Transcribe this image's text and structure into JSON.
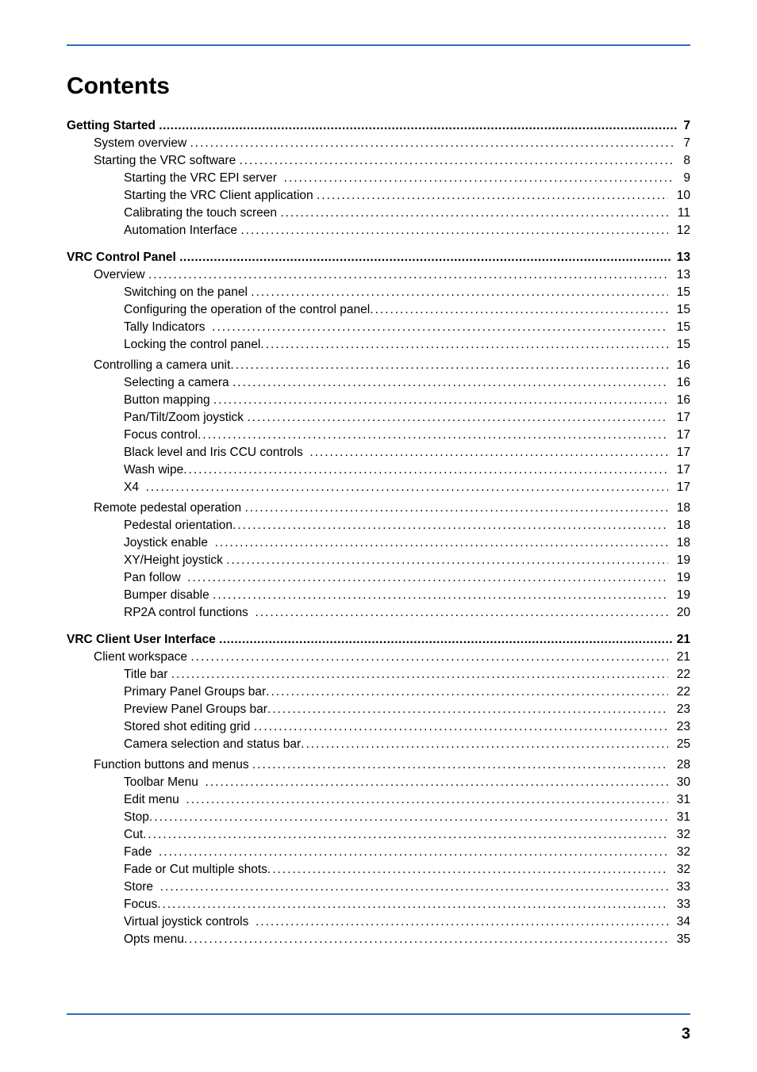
{
  "page": {
    "title": "Contents",
    "page_number": "3",
    "colors": {
      "rule": "#2a6fbf",
      "text": "#000000",
      "background": "#ffffff"
    },
    "toc": [
      {
        "level": 1,
        "label": "Getting Started ",
        "page": "7",
        "tight": true,
        "pad": ""
      },
      {
        "level": 2,
        "label": "System overview",
        "page": " 7",
        "pad": " "
      },
      {
        "level": 2,
        "label": "Starting the VRC software",
        "page": " 8",
        "pad": " "
      },
      {
        "level": 3,
        "label": "Starting the VRC EPI server",
        "page": " 9",
        "pad": "  "
      },
      {
        "level": 3,
        "label": "Starting the VRC Client application",
        "page": " 10",
        "pad": " "
      },
      {
        "level": 3,
        "label": "Calibrating the touch screen",
        "page": " 11",
        "pad": " "
      },
      {
        "level": 3,
        "label": "Automation Interface",
        "page": " 12",
        "pad": " "
      },
      {
        "gap": "section"
      },
      {
        "level": 1,
        "label": "VRC Control Panel ",
        "page": "13",
        "tight": true,
        "pad": ""
      },
      {
        "level": 2,
        "label": "Overview",
        "page": " 13",
        "pad": " "
      },
      {
        "level": 3,
        "label": "Switching on the panel",
        "page": " 15",
        "pad": " "
      },
      {
        "level": 3,
        "label": "Configuring the operation of the control panel",
        "page": " 15",
        "pad": ""
      },
      {
        "level": 3,
        "label": "Tally Indicators ",
        "page": " 15",
        "pad": " "
      },
      {
        "level": 3,
        "label": "Locking the control panel",
        "page": " 15",
        "pad": ""
      },
      {
        "gap": "sub"
      },
      {
        "level": 2,
        "label": "Controlling a camera unit",
        "page": " 16",
        "pad": ""
      },
      {
        "level": 3,
        "label": "Selecting a camera",
        "page": " 16",
        "pad": " "
      },
      {
        "level": 3,
        "label": "Button mapping",
        "page": " 16",
        "pad": " "
      },
      {
        "level": 3,
        "label": "Pan/Tilt/Zoom joystick",
        "page": " 17",
        "pad": " "
      },
      {
        "level": 3,
        "label": "Focus control",
        "page": " 17",
        "pad": ""
      },
      {
        "level": 3,
        "label": "Black level and Iris CCU controls ",
        "page": " 17",
        "pad": " "
      },
      {
        "level": 3,
        "label": "Wash wipe",
        "page": " 17",
        "pad": ""
      },
      {
        "level": 3,
        "label": "X4 ",
        "page": " 17",
        "pad": " "
      },
      {
        "gap": "sub"
      },
      {
        "level": 2,
        "label": "Remote pedestal operation",
        "page": " 18",
        "pad": " "
      },
      {
        "level": 3,
        "label": "Pedestal orientation",
        "page": " 18",
        "pad": ""
      },
      {
        "level": 3,
        "label": "Joystick enable ",
        "page": " 18",
        "pad": " "
      },
      {
        "level": 3,
        "label": "XY/Height joystick",
        "page": " 19",
        "pad": " "
      },
      {
        "level": 3,
        "label": "Pan follow ",
        "page": " 19",
        "pad": " "
      },
      {
        "level": 3,
        "label": "Bumper disable",
        "page": " 19",
        "pad": " "
      },
      {
        "level": 3,
        "label": "RP2A control functions ",
        "page": " 20",
        "pad": " "
      },
      {
        "gap": "section"
      },
      {
        "level": 1,
        "label": "VRC Client User Interface",
        "page": "21",
        "tight": true,
        "pad": " "
      },
      {
        "level": 2,
        "label": "Client workspace",
        "page": " 21",
        "pad": " "
      },
      {
        "level": 3,
        "label": "Title bar",
        "page": " 22",
        "pad": " "
      },
      {
        "level": 3,
        "label": "Primary Panel Groups bar",
        "page": " 22",
        "pad": ""
      },
      {
        "level": 3,
        "label": "Preview Panel Groups bar",
        "page": " 23",
        "pad": ""
      },
      {
        "level": 3,
        "label": "Stored shot editing grid",
        "page": " 23",
        "pad": " "
      },
      {
        "level": 3,
        "label": "Camera selection and status bar",
        "page": " 25",
        "pad": ""
      },
      {
        "gap": "sub"
      },
      {
        "level": 2,
        "label": "Function buttons and menus",
        "page": " 28",
        "pad": " "
      },
      {
        "level": 3,
        "label": "Toolbar Menu ",
        "page": " 30",
        "pad": " "
      },
      {
        "level": 3,
        "label": "Edit menu ",
        "page": " 31",
        "pad": " "
      },
      {
        "level": 3,
        "label": "Stop",
        "page": " 31",
        "pad": ""
      },
      {
        "level": 3,
        "label": "Cut",
        "page": " 32",
        "pad": ""
      },
      {
        "level": 3,
        "label": "Fade ",
        "page": " 32",
        "pad": " "
      },
      {
        "level": 3,
        "label": "Fade or Cut multiple shots",
        "page": " 32",
        "pad": ""
      },
      {
        "level": 3,
        "label": "Store ",
        "page": " 33",
        "pad": " "
      },
      {
        "level": 3,
        "label": "Focus",
        "page": " 33",
        "pad": ""
      },
      {
        "level": 3,
        "label": "Virtual joystick controls ",
        "page": " 34",
        "pad": " "
      },
      {
        "level": 3,
        "label": "Opts menu",
        "page": " 35",
        "pad": ""
      }
    ]
  }
}
